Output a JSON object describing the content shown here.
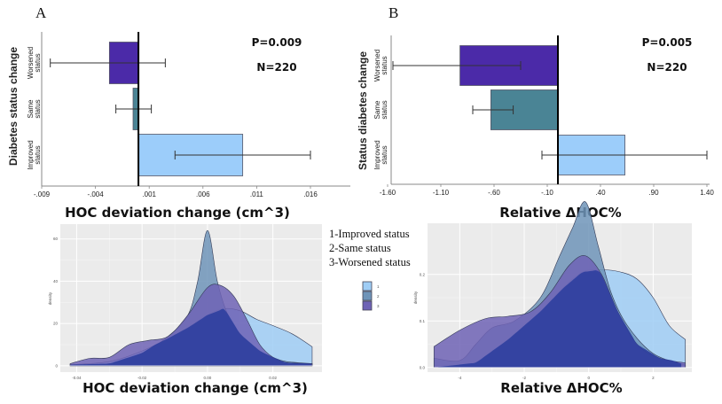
{
  "panels": {
    "a_label": "A",
    "b_label": "B"
  },
  "legend_text": [
    "1-Improved status",
    "2-Same status",
    "3-Worsened status"
  ],
  "colors": {
    "worsened": "#4b2aa8",
    "same": "#4a8495",
    "improved": "#9ccdfa",
    "density_improved": "#9fcdf5",
    "density_same": "#6f94b8",
    "density_worsened": "#2d3f9e",
    "density_worsened_light": "#6e63b5",
    "panel_bg": "#ebebeb"
  },
  "chart_data": [
    {
      "type": "bar",
      "orientation": "horizontal",
      "panel": "A",
      "title": "",
      "xlabel": "HOC deviation change (cm^3)",
      "ylabel": "Diabetes status change",
      "categories": [
        "Worsened status",
        "Same status",
        "Improved status"
      ],
      "values": [
        -0.0027,
        -0.0005,
        0.0097
      ],
      "error_low": [
        -0.0082,
        -0.0021,
        0.0034
      ],
      "error_high": [
        0.0025,
        0.0012,
        0.016
      ],
      "xlim": [
        -0.009,
        0.02
      ],
      "xticks": [
        -0.009,
        -0.004,
        0.001,
        0.006,
        0.011,
        0.016
      ],
      "xtick_labels": [
        "-.009",
        "-.004",
        ".001",
        ".006",
        ".011",
        ".016"
      ],
      "annotations": [
        "P=0.009",
        "N=220"
      ]
    },
    {
      "type": "bar",
      "orientation": "horizontal",
      "panel": "B",
      "title": "",
      "xlabel": "Relative ΔHOC%",
      "ylabel": "Status diabetes change",
      "categories": [
        "Worsened status",
        "Same status",
        "Improved status"
      ],
      "values": [
        -0.92,
        -0.63,
        0.63
      ],
      "error_low": [
        -1.55,
        -0.8,
        -0.15
      ],
      "error_high": [
        -0.35,
        -0.42,
        1.4
      ],
      "xlim": [
        -1.6,
        1.4
      ],
      "xticks": [
        -1.6,
        -1.1,
        -0.6,
        -0.1,
        0.4,
        0.9,
        1.4
      ],
      "xtick_labels": [
        "-1.60",
        "-1.10",
        "-.60",
        "-.10",
        ".40",
        ".90",
        "1.40"
      ],
      "annotations": [
        "P=0.005",
        "N=220"
      ]
    },
    {
      "type": "area",
      "panel": "density-left",
      "title": "",
      "xlabel": "HOC deviation change (cm^3)",
      "ylabel": "density",
      "xlim": [
        -0.045,
        0.035
      ],
      "ylim": [
        -3,
        67
      ],
      "xticks": [
        -0.04,
        -0.02,
        0.0,
        0.02
      ],
      "xtick_labels": [
        "-0.04",
        "-0.02",
        "0.00",
        "0.02"
      ],
      "yticks": [
        0,
        20,
        40,
        60
      ],
      "ytick_labels": [
        "0",
        "20",
        "40",
        "60"
      ],
      "legend": {
        "title": "",
        "entries": [
          "1",
          "2",
          "3"
        ],
        "position": "left-outside"
      },
      "series": [
        {
          "name": "3",
          "x": [
            -0.042,
            -0.036,
            -0.03,
            -0.024,
            -0.018,
            -0.012,
            -0.006,
            0.0,
            0.004,
            0.008,
            0.012,
            0.016,
            0.02,
            0.024,
            0.032
          ],
          "values": [
            1,
            3.5,
            4,
            10,
            12,
            14,
            24,
            37,
            38,
            33,
            22,
            10,
            4,
            1.5,
            1
          ]
        },
        {
          "name": "2",
          "x": [
            -0.042,
            -0.03,
            -0.02,
            -0.012,
            -0.006,
            -0.003,
            0.0,
            0.003,
            0.006,
            0.01,
            0.016,
            0.02,
            0.024,
            0.032
          ],
          "values": [
            0.5,
            1,
            6,
            14,
            24,
            40,
            64,
            40,
            25,
            15,
            7,
            4,
            2,
            1
          ]
        },
        {
          "name": "1",
          "x": [
            -0.042,
            -0.03,
            -0.02,
            -0.012,
            -0.006,
            0.0,
            0.005,
            0.01,
            0.015,
            0.02,
            0.026,
            0.032
          ],
          "values": [
            0.5,
            2,
            7,
            13,
            18,
            24,
            27,
            26,
            22,
            19,
            15,
            9
          ]
        }
      ]
    },
    {
      "type": "area",
      "panel": "density-right",
      "title": "",
      "xlabel": "Relative ΔHOC%",
      "ylabel": "density",
      "xlim": [
        -5,
        3.2
      ],
      "ylim": [
        -0.01,
        0.31
      ],
      "xticks": [
        -4,
        -2,
        0,
        2
      ],
      "xtick_labels": [
        "-4",
        "-2",
        "0",
        "2"
      ],
      "yticks": [
        0.0,
        0.1,
        0.2
      ],
      "ytick_labels": [
        "0.0",
        "0.1",
        "0.2"
      ],
      "series": [
        {
          "name": "3",
          "x": [
            -4.8,
            -4.0,
            -3.2,
            -2.5,
            -1.8,
            -1.2,
            -0.6,
            -0.1,
            0.4,
            0.9,
            1.5,
            2.2,
            3.0
          ],
          "values": [
            0.045,
            0.08,
            0.105,
            0.11,
            0.12,
            0.16,
            0.22,
            0.24,
            0.2,
            0.12,
            0.05,
            0.02,
            0.01
          ]
        },
        {
          "name": "2",
          "x": [
            -4.8,
            -4.0,
            -3.5,
            -3.0,
            -2.3,
            -1.5,
            -0.9,
            -0.5,
            -0.1,
            0.3,
            0.7,
            1.2,
            2.0,
            3.0
          ],
          "values": [
            0.02,
            0.015,
            0.05,
            0.085,
            0.1,
            0.15,
            0.24,
            0.3,
            0.356,
            0.26,
            0.16,
            0.09,
            0.03,
            0.005
          ]
        },
        {
          "name": "1",
          "x": [
            -4.8,
            -3.5,
            -2.5,
            -1.5,
            -0.8,
            -0.2,
            0.4,
            1.0,
            1.5,
            2.0,
            2.5,
            3.0
          ],
          "values": [
            0.0,
            0.01,
            0.06,
            0.12,
            0.17,
            0.205,
            0.21,
            0.205,
            0.19,
            0.15,
            0.09,
            0.06
          ]
        }
      ]
    }
  ]
}
